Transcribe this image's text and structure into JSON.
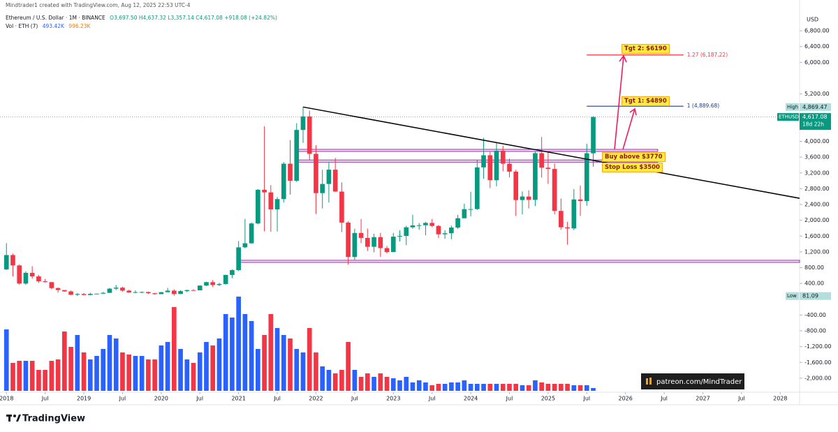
{
  "header": {
    "credit": "Mindtrader1 created with TradingView.com, Aug 12, 2025 22:53 UTC-4",
    "symbol": "Ethereum / U.S. Dollar · 1M · BINANCE",
    "ohlc": "O3,697.50 H4,637.32 L3,357.14 C4,617.08 +918.08 (+24.82%)",
    "volume_name": "Vol · ETH (7)",
    "volume_value": "493.42K",
    "volume_ma": "996.23K"
  },
  "chart_data": {
    "type": "candlestick",
    "currency": "USD",
    "name": "ETHUSD",
    "up_color": "#089981",
    "down_color": "#f23645",
    "volume_up_color": "#2962ff",
    "volume_down_color": "#f23645",
    "grid": false,
    "xlim": [
      "2017-12",
      "2028-04"
    ],
    "ylim": [
      -2320,
      7580
    ],
    "x": [
      "2018-01",
      "2018-02",
      "2018-03",
      "2018-04",
      "2018-05",
      "2018-06",
      "2018-07",
      "2018-08",
      "2018-09",
      "2018-10",
      "2018-11",
      "2018-12",
      "2019-01",
      "2019-02",
      "2019-03",
      "2019-04",
      "2019-05",
      "2019-06",
      "2019-07",
      "2019-08",
      "2019-09",
      "2019-10",
      "2019-11",
      "2019-12",
      "2020-01",
      "2020-02",
      "2020-03",
      "2020-04",
      "2020-05",
      "2020-06",
      "2020-07",
      "2020-08",
      "2020-09",
      "2020-10",
      "2020-11",
      "2020-12",
      "2021-01",
      "2021-02",
      "2021-03",
      "2021-04",
      "2021-05",
      "2021-06",
      "2021-07",
      "2021-08",
      "2021-09",
      "2021-10",
      "2021-11",
      "2021-12",
      "2022-01",
      "2022-02",
      "2022-03",
      "2022-04",
      "2022-05",
      "2022-06",
      "2022-07",
      "2022-08",
      "2022-09",
      "2022-10",
      "2022-11",
      "2022-12",
      "2023-01",
      "2023-02",
      "2023-03",
      "2023-04",
      "2023-05",
      "2023-06",
      "2023-07",
      "2023-08",
      "2023-09",
      "2023-10",
      "2023-11",
      "2023-12",
      "2024-01",
      "2024-02",
      "2024-03",
      "2024-04",
      "2024-05",
      "2024-06",
      "2024-07",
      "2024-08",
      "2024-09",
      "2024-10",
      "2024-11",
      "2024-12",
      "2025-01",
      "2025-02",
      "2025-03",
      "2025-04",
      "2025-05",
      "2025-06",
      "2025-07",
      "2025-08"
    ],
    "open": [
      756,
      1119,
      856,
      397,
      669,
      578,
      455,
      433,
      283,
      233,
      198,
      113,
      133,
      107,
      136,
      141,
      162,
      268,
      293,
      218,
      172,
      180,
      182,
      152,
      130,
      179,
      218,
      133,
      206,
      231,
      226,
      346,
      433,
      360,
      386,
      615,
      737,
      1315,
      1417,
      1919,
      2773,
      2707,
      2275,
      2537,
      3433,
      3001,
      4289,
      4631,
      3683,
      2688,
      2920,
      3282,
      2727,
      1942,
      1070,
      1678,
      1553,
      1328,
      1572,
      1295,
      1196,
      1585,
      1605,
      1822,
      1870,
      1874,
      1934,
      1857,
      1645,
      1671,
      1815,
      2052,
      2282,
      2284,
      3340,
      3647,
      3015,
      3762,
      3433,
      3232,
      2513,
      2602,
      2517,
      3700,
      3332,
      3300,
      2237,
      1822,
      1794,
      2528,
      2486,
      3697.5
    ],
    "high": [
      1420,
      1161,
      880,
      708,
      835,
      620,
      515,
      436,
      300,
      235,
      222,
      158,
      160,
      165,
      145,
      184,
      288,
      361,
      320,
      240,
      223,
      198,
      193,
      154,
      184,
      287,
      253,
      227,
      246,
      255,
      348,
      444,
      489,
      417,
      622,
      756,
      1476,
      2036,
      1945,
      2790,
      4380,
      2890,
      2590,
      3474,
      4030,
      4460,
      4869.47,
      4778,
      3900,
      3280,
      3480,
      3580,
      2960,
      1975,
      1786,
      2030,
      1790,
      1660,
      1680,
      1350,
      1680,
      1745,
      1860,
      2140,
      1930,
      1960,
      2030,
      1880,
      1750,
      1865,
      2140,
      2420,
      2720,
      3520,
      4090,
      3730,
      3975,
      3890,
      3560,
      3280,
      2730,
      2760,
      3740,
      4110,
      3745,
      3440,
      2550,
      1960,
      2790,
      2880,
      3940,
      4637.32
    ],
    "low": [
      740,
      575,
      368,
      366,
      523,
      412,
      425,
      250,
      168,
      190,
      102,
      81.09,
      101,
      102,
      128,
      140,
      155,
      230,
      190,
      165,
      153,
      152,
      137,
      117,
      127,
      177,
      89,
      130,
      176,
      216,
      224,
      335,
      308,
      335,
      370,
      533,
      714,
      1290,
      1410,
      1900,
      1720,
      1707,
      1718,
      2450,
      2650,
      2970,
      3960,
      3522,
      2160,
      2300,
      2450,
      2720,
      1700,
      880,
      1000,
      1420,
      1220,
      1190,
      1073,
      1160,
      1190,
      1460,
      1370,
      1785,
      1760,
      1620,
      1830,
      1550,
      1530,
      1521,
      1780,
      2050,
      2100,
      2260,
      3050,
      2815,
      2860,
      3240,
      3090,
      2110,
      2150,
      2300,
      2360,
      3080,
      2920,
      2150,
      1760,
      1385,
      1750,
      2110,
      2370,
      3357.14
    ],
    "close": [
      1119,
      856,
      397,
      669,
      578,
      455,
      433,
      283,
      233,
      198,
      113,
      133,
      107,
      136,
      141,
      162,
      268,
      293,
      218,
      172,
      180,
      182,
      152,
      130,
      179,
      218,
      133,
      206,
      231,
      226,
      346,
      433,
      360,
      386,
      615,
      737,
      1315,
      1417,
      1919,
      2773,
      2707,
      2275,
      2537,
      3433,
      3001,
      4289,
      4631,
      3683,
      2688,
      2920,
      3282,
      2727,
      1942,
      1070,
      1678,
      1553,
      1328,
      1572,
      1295,
      1196,
      1585,
      1605,
      1822,
      1870,
      1874,
      1934,
      1857,
      1645,
      1671,
      1815,
      2052,
      2282,
      2284,
      3340,
      3647,
      3015,
      3762,
      3433,
      3232,
      2513,
      2602,
      2517,
      3700,
      3332,
      3300,
      2237,
      1822,
      1794,
      2528,
      2486,
      3697.5,
      4617.08
    ],
    "volume": [
      10824000,
      4920000,
      5289000,
      5289000,
      5289000,
      3690000,
      3690000,
      5289000,
      5535000,
      10455000,
      7749000,
      9840000,
      6765000,
      5535000,
      6150000,
      7380000,
      9840000,
      9225000,
      6765000,
      6396000,
      6150000,
      6150000,
      5535000,
      5535000,
      7995000,
      8610000,
      14760000,
      7380000,
      5535000,
      4920000,
      6765000,
      8610000,
      7995000,
      9225000,
      13530000,
      12915000,
      16605000,
      13530000,
      12300000,
      7380000,
      9840000,
      13530000,
      11070000,
      9840000,
      9225000,
      7380000,
      6765000,
      11070000,
      6765000,
      4305000,
      3690000,
      3075000,
      3690000,
      8610000,
      3690000,
      2460000,
      3075000,
      2460000,
      3075000,
      2460000,
      2214000,
      1845000,
      2460000,
      1476000,
      1845000,
      1476000,
      984000,
      1230000,
      1230000,
      1476000,
      1476000,
      1845000,
      1230000,
      1230000,
      1230000,
      1230000,
      1230000,
      1230000,
      1230000,
      1230000,
      984000,
      984000,
      1845000,
      1476000,
      1230000,
      1230000,
      1230000,
      1230000,
      984000,
      984000,
      984000,
      493420
    ],
    "yticks": [
      {
        "value": 6800,
        "label": "6,800.00"
      },
      {
        "value": 6400,
        "label": "6,400.00"
      },
      {
        "value": 6000,
        "label": "6,000.00"
      },
      {
        "value": 5200,
        "label": "5,200.00"
      },
      {
        "value": 4000,
        "label": "4,000.00"
      },
      {
        "value": 3600,
        "label": "3,600.00"
      },
      {
        "value": 3200,
        "label": "3,200.00"
      },
      {
        "value": 2800,
        "label": "2,800.00"
      },
      {
        "value": 2400,
        "label": "2,400.00"
      },
      {
        "value": 2000,
        "label": "2,000.00"
      },
      {
        "value": 1600,
        "label": "1,600.00"
      },
      {
        "value": 1200,
        "label": "1,200.00"
      },
      {
        "value": 800,
        "label": "800.00"
      },
      {
        "value": 400,
        "label": "400.00"
      },
      {
        "value": -400,
        "label": "-400.00"
      },
      {
        "value": -800,
        "label": "-800.00"
      },
      {
        "value": -1200,
        "label": "-1,200.00"
      },
      {
        "value": -1600,
        "label": "-1,600.00"
      },
      {
        "value": -2000,
        "label": "-2,000.00"
      }
    ],
    "xticks": [
      {
        "value": "2018-01",
        "label": "2018"
      },
      {
        "value": "2018-07",
        "label": "Jul"
      },
      {
        "value": "2019-01",
        "label": "2019"
      },
      {
        "value": "2019-07",
        "label": "Jul"
      },
      {
        "value": "2020-01",
        "label": "2020"
      },
      {
        "value": "2020-07",
        "label": "Jul"
      },
      {
        "value": "2021-01",
        "label": "2021"
      },
      {
        "value": "2021-07",
        "label": "Jul"
      },
      {
        "value": "2022-01",
        "label": "2022"
      },
      {
        "value": "2022-07",
        "label": "Jul"
      },
      {
        "value": "2023-01",
        "label": "2023"
      },
      {
        "value": "2023-07",
        "label": "Jul"
      },
      {
        "value": "2024-01",
        "label": "2024"
      },
      {
        "value": "2024-07",
        "label": "Jul"
      },
      {
        "value": "2025-01",
        "label": "2025"
      },
      {
        "value": "2025-07",
        "label": "Jul"
      },
      {
        "value": "2026-01",
        "label": "2026"
      },
      {
        "value": "2026-07",
        "label": "Jul"
      },
      {
        "value": "2027-01",
        "label": "2027"
      },
      {
        "value": "2027-07",
        "label": "Jul"
      },
      {
        "value": "2028-01",
        "label": "2028"
      }
    ],
    "trendline": {
      "x": [
        "2021-11",
        "2028-04"
      ],
      "values": [
        4869.47,
        2557
      ],
      "color": "#000000"
    },
    "zones": [
      {
        "value": 3770,
        "x": [
          "2021-10",
          "2026-06"
        ],
        "color": "#9c27b0"
      },
      {
        "value": 3500,
        "x": [
          "2021-10",
          "2026-06"
        ],
        "color": "#9c27b0"
      },
      {
        "value": 960,
        "x": [
          "2021-01",
          "2028-04"
        ],
        "color": "#9c27b0"
      }
    ],
    "fib_lines": [
      {
        "label": "1.27 (6,187.22)",
        "value": 6187.22,
        "x": [
          "2025-07",
          "2026-10"
        ],
        "color": "#f23645"
      },
      {
        "label": "1 (4,889.68)",
        "value": 4889.68,
        "x": [
          "2025-07",
          "2026-10"
        ],
        "color": "#1e3a8a"
      }
    ],
    "tags": [
      {
        "name": "High",
        "value": 4869.47,
        "label": "4,869.47"
      },
      {
        "name": "ETHUSD",
        "value": 4617.08,
        "label": "4,617.08",
        "note": "18d 22h"
      },
      {
        "name": "Low",
        "value": 81.09,
        "label": "81.09"
      }
    ],
    "annotations": [
      "Tgt 2: $6190",
      "Tgt 1: $4890",
      "Buy above $3770",
      "Stop Loss $3500"
    ]
  },
  "watermark": "patreon.com/MindTrader",
  "footer": "TradingView"
}
